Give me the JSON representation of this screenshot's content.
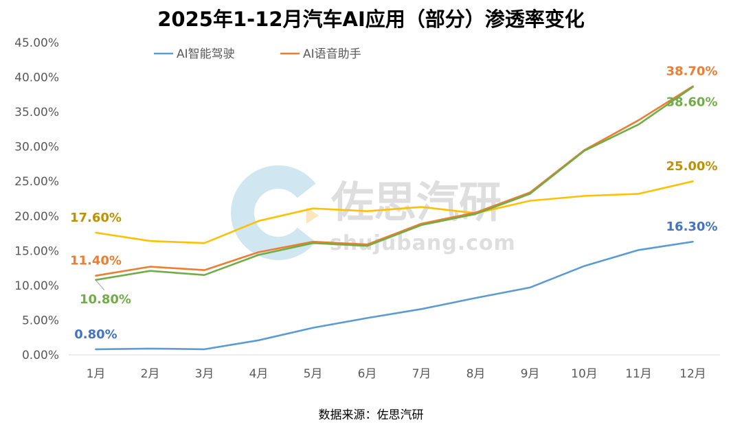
{
  "chart_data": {
    "type": "line",
    "title": "2025年1-12月汽车AI应用（部分）渗透率变化",
    "categories": [
      "1月",
      "2月",
      "3月",
      "4月",
      "5月",
      "6月",
      "7月",
      "8月",
      "9月",
      "10月",
      "11月",
      "12月"
    ],
    "ylim": [
      0,
      45
    ],
    "yticks": [
      "0.00%",
      "5.00%",
      "10.00%",
      "15.00%",
      "20.00%",
      "25.00%",
      "30.00%",
      "35.00%",
      "40.00%",
      "45.00%"
    ],
    "grid": false,
    "legend_position": "top",
    "series": [
      {
        "name": "AI智能驾驶",
        "color": "#5b9bd5",
        "label_color": "#4472c4",
        "values": [
          0.8,
          0.9,
          0.8,
          2.1,
          3.9,
          5.3,
          6.6,
          8.2,
          9.7,
          12.8,
          15.1,
          16.3
        ],
        "first_label": "0.80%",
        "last_label": "16.30%"
      },
      {
        "name": "AI语音助手",
        "color": "#ed7d31",
        "label_color": "#ed7d31",
        "values": [
          11.4,
          12.7,
          12.2,
          14.8,
          16.3,
          15.9,
          18.9,
          20.5,
          23.4,
          29.5,
          33.8,
          38.7
        ],
        "first_label": "11.40%",
        "last_label": "38.70%"
      },
      {
        "name": "",
        "color": "#70ad47",
        "label_color": "#70ad47",
        "values": [
          10.8,
          12.1,
          11.5,
          14.4,
          16.1,
          15.7,
          18.7,
          20.3,
          23.2,
          29.4,
          33.2,
          38.6
        ],
        "first_label": "10.80%",
        "last_label": "38.60%"
      },
      {
        "name": "",
        "color": "#ffc000",
        "label_color": "#c09000",
        "values": [
          17.6,
          16.4,
          16.1,
          19.3,
          21.1,
          20.7,
          21.3,
          20.4,
          22.2,
          22.9,
          23.2,
          25.0
        ],
        "first_label": "17.60%",
        "last_label": "25.00%"
      }
    ],
    "source": "数据来源：佐思汽研"
  },
  "watermark": {
    "brand": "佐思汽研",
    "domain": "shujubang.com"
  }
}
